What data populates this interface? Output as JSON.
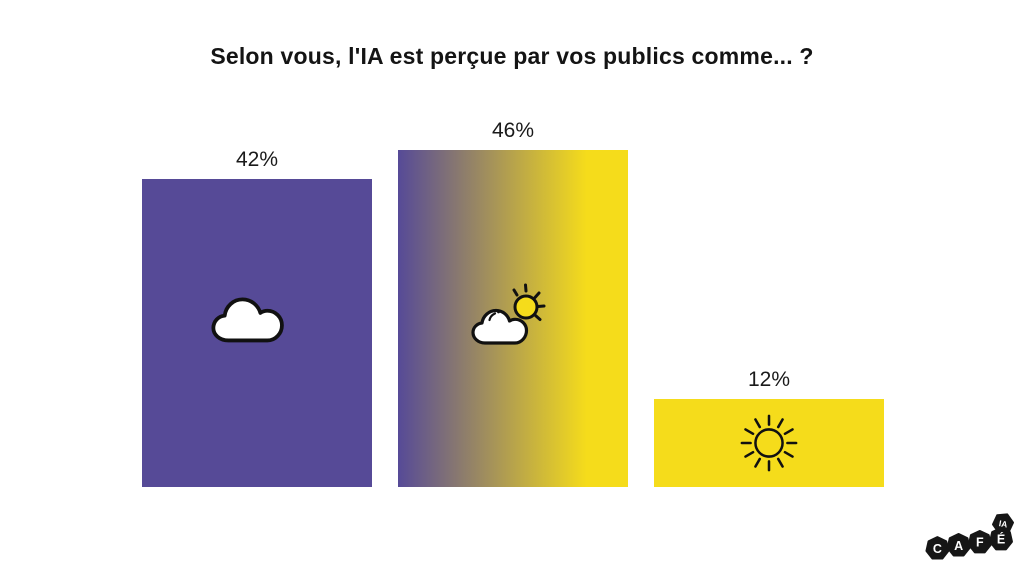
{
  "page": {
    "background": "#ffffff"
  },
  "chart_data": {
    "type": "bar",
    "title": "Selon vous, l'IA est perçue par vos publics comme... ?",
    "categories": [
      "cloud-icon",
      "cloud-sun-icon",
      "sun-icon"
    ],
    "values": [
      42,
      46,
      12
    ],
    "value_labels": [
      "42%",
      "46%",
      "12%"
    ],
    "ylim": [
      0,
      50
    ],
    "grid": false,
    "axes": "hidden",
    "legend": "none",
    "bar_colors": [
      "#564A97",
      "linear-gradient(90deg, #564A97 0%, #F5DC1B 82%)",
      "#F5DC1B"
    ]
  },
  "colors": {
    "purple": "#564A97",
    "yellow": "#F5DC1B",
    "ink": "#141414",
    "icon_fill": "#ffffff"
  },
  "logo": {
    "letters": [
      "C",
      "A",
      "F",
      "É"
    ],
    "badge": "IA"
  }
}
